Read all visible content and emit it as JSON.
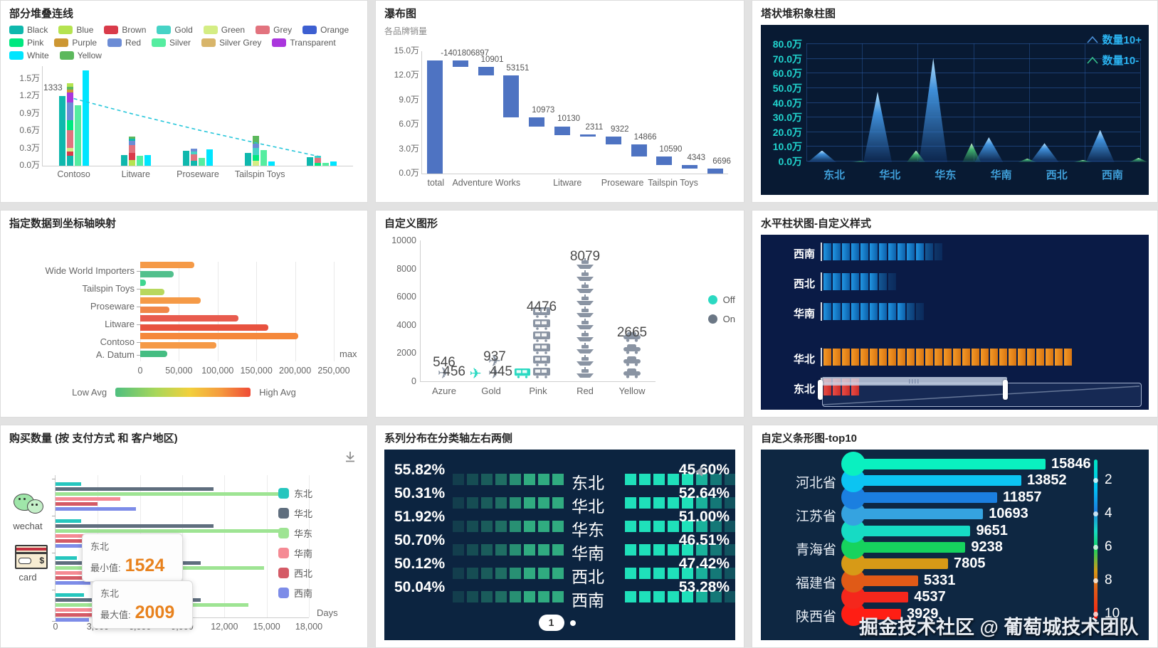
{
  "chart_data": [
    {
      "id": "p1",
      "type": "bar",
      "title": "部分堆叠连线",
      "legend": [
        {
          "label": "Black",
          "color": "#0fb8ad"
        },
        {
          "label": "Blue",
          "color": "#b5e350"
        },
        {
          "label": "Brown",
          "color": "#d93b4a"
        },
        {
          "label": "Gold",
          "color": "#46d3c6"
        },
        {
          "label": "Green",
          "color": "#d4ed84"
        },
        {
          "label": "Grey",
          "color": "#e2737e"
        },
        {
          "label": "Orange",
          "color": "#3d5fd1"
        },
        {
          "label": "Pink",
          "color": "#00e87f"
        },
        {
          "label": "Purple",
          "color": "#cd9733"
        },
        {
          "label": "Red",
          "color": "#6c8cd5"
        },
        {
          "label": "Silver",
          "color": "#55eda0"
        },
        {
          "label": "Silver Grey",
          "color": "#d8b56a"
        },
        {
          "label": "Transparent",
          "color": "#aa36dd"
        },
        {
          "label": "White",
          "color": "#00e5ff"
        },
        {
          "label": "Yellow",
          "color": "#5cb85c"
        }
      ],
      "y_ticks": [
        "0.0万",
        "0.3万",
        "0.6万",
        "0.9万",
        "1.2万",
        "1.5万"
      ],
      "categories": [
        "Contoso",
        "Litware",
        "Proseware",
        "Tailspin Toys",
        ""
      ],
      "point_label": "1333",
      "colors": {
        "solid": "#0fb8ad",
        "green": "#55eda0",
        "cyan": "#00e5ff",
        "line": "#26c6da"
      },
      "groups": [
        {
          "solid": 1.2,
          "green": 1.05,
          "cyan": 1.65,
          "stack": [
            [
              "#0fb8ad",
              0.17
            ],
            [
              "#d93b4a",
              0.08
            ],
            [
              "#d4ed84",
              0.06
            ],
            [
              "#e2737e",
              0.3
            ],
            [
              "#00e87f",
              0.18
            ],
            [
              "#6c8cd5",
              0.3
            ],
            [
              "#aa36dd",
              0.18
            ],
            [
              "#cd9733",
              0.05
            ],
            [
              "#5cb85c",
              0.04
            ],
            [
              "#b5e350",
              0.07
            ]
          ]
        },
        {
          "solid": 0.18,
          "green": 0.17,
          "cyan": 0.18,
          "stack": [
            [
              "#b5e350",
              0.1
            ],
            [
              "#d93b4a",
              0.12
            ],
            [
              "#e2737e",
              0.14
            ],
            [
              "#6c8cd5",
              0.07
            ],
            [
              "#0fb8ad",
              0.04
            ],
            [
              "#5cb85c",
              0.03
            ]
          ]
        },
        {
          "solid": 0.26,
          "green": 0.13,
          "cyan": 0.28,
          "stack": [
            [
              "#0fb8ad",
              0.09
            ],
            [
              "#e2737e",
              0.11
            ],
            [
              "#46d3c6",
              0.04
            ],
            [
              "#6c8cd5",
              0.05
            ]
          ]
        },
        {
          "solid": 0.22,
          "green": 0.27,
          "cyan": 0.08,
          "stack": [
            [
              "#d4ed84",
              0.09
            ],
            [
              "#00e87f",
              0.09
            ],
            [
              "#46d3c6",
              0.13
            ],
            [
              "#6c8cd5",
              0.07
            ],
            [
              "#5cb85c",
              0.14
            ]
          ]
        },
        {
          "solid": 0.15,
          "green": 0.05,
          "cyan": 0.08,
          "stack": [
            [
              "#00e87f",
              0.05
            ],
            [
              "#e2737e",
              0.08
            ],
            [
              "#46d3c6",
              0.04
            ]
          ]
        }
      ],
      "line_wan": [
        1.16,
        0.88,
        0.62,
        0.38,
        0.15
      ]
    },
    {
      "id": "p2",
      "type": "waterfall",
      "title": "瀑布图",
      "subtitle": "各品牌销量",
      "y_ticks": [
        "0.0万",
        "3.0万",
        "6.0万",
        "9.0万",
        "12.0万",
        "15.0万"
      ],
      "bar_color": "#4e73c2",
      "bars": [
        {
          "s": 0,
          "e": 13.9,
          "label": "-1401806897",
          "lx": 0.14
        },
        {
          "s": 13.1,
          "e": 13.9
        },
        {
          "s": 12.0,
          "e": 13.1,
          "label": "10901"
        },
        {
          "s": 6.9,
          "e": 12.0,
          "label": "53151"
        },
        {
          "s": 5.8,
          "e": 6.9,
          "label": "10973"
        },
        {
          "s": 4.75,
          "e": 5.8,
          "label": "10130"
        },
        {
          "s": 4.55,
          "e": 4.78,
          "label": "2311"
        },
        {
          "s": 3.6,
          "e": 4.55,
          "label": "9322"
        },
        {
          "s": 2.1,
          "e": 3.6,
          "label": "14866"
        },
        {
          "s": 1.05,
          "e": 2.1,
          "label": "10590"
        },
        {
          "s": 0.6,
          "e": 1.05,
          "label": "4343"
        },
        {
          "s": 0,
          "e": 0.65,
          "label": "6696"
        }
      ],
      "x_labels": [
        {
          "text": "total",
          "pos": 0.045
        },
        {
          "text": "Adventure Works",
          "pos": 0.21
        },
        {
          "text": "Litware",
          "pos": 0.475
        },
        {
          "text": "Proseware",
          "pos": 0.655
        },
        {
          "text": "Tailspin Toys",
          "pos": 0.82
        }
      ],
      "ymax": 15
    },
    {
      "id": "p3",
      "type": "area",
      "title": "塔状堆积象柱图",
      "bg": "#081a33",
      "y_ticks": [
        "0.0万",
        "10.0万",
        "20.0万",
        "30.0万",
        "40.0万",
        "50.0万",
        "60.0万",
        "70.0万",
        "80.0万"
      ],
      "categories": [
        "东北",
        "华北",
        "华东",
        "华南",
        "西北",
        "西南"
      ],
      "legend": [
        {
          "label": "数量10+",
          "color": "#4a90d9"
        },
        {
          "label": "数量10-",
          "color": "#35c08c"
        }
      ],
      "series": [
        {
          "name": "数量10+",
          "values": [
            8,
            48,
            71,
            17,
            13,
            22
          ]
        },
        {
          "name": "数量10-",
          "values": [
            0.8,
            8,
            13,
            2.5,
            1.5,
            3
          ]
        }
      ],
      "ymax": 80
    },
    {
      "id": "p4",
      "type": "bar",
      "title": "指定数据到坐标轴映射",
      "bars": [
        {
          "v": 70000,
          "c": "#f59a47"
        },
        {
          "v": 43000,
          "c": "#52c08d"
        },
        {
          "v": 7000,
          "c": "#3fd68f"
        },
        {
          "v": 31000,
          "c": "#b8d85e"
        },
        {
          "v": 78000,
          "c": "#f59a47"
        },
        {
          "v": 38000,
          "c": "#f08648"
        },
        {
          "v": 127000,
          "c": "#e85b4e"
        },
        {
          "v": 165000,
          "c": "#e8523f"
        },
        {
          "v": 204000,
          "c": "#f5883b"
        },
        {
          "v": 98000,
          "c": "#f59a47"
        },
        {
          "v": 35000,
          "c": "#45bd82"
        }
      ],
      "labels": [
        {
          "text": "Wide World Importers",
          "row": 1
        },
        {
          "text": "Tailspin Toys",
          "row": 3
        },
        {
          "text": "Proseware",
          "row": 5
        },
        {
          "text": "Litware",
          "row": 7
        },
        {
          "text": "Contoso",
          "row": 9
        },
        {
          "text": "A. Datum",
          "row": 10.5
        }
      ],
      "x_ticks": [
        "0",
        "50,000",
        "100,000",
        "150,000",
        "200,000",
        "250,000"
      ],
      "max_label": "max",
      "xmax": 250000,
      "gradient_legend": {
        "low": "Low Avg",
        "high": "High Avg"
      }
    },
    {
      "id": "p5",
      "type": "bar",
      "title": "自定义图形",
      "y_ticks": [
        "0",
        "2000",
        "4000",
        "6000",
        "8000",
        "10000"
      ],
      "ymax": 10000,
      "legend": [
        {
          "label": "Off",
          "color": "#2bd9c2"
        },
        {
          "label": "On",
          "color": "#6b7785"
        }
      ],
      "icon_colors": {
        "off": "#2bd9c2",
        "on": "#8a94a3"
      },
      "categories": [
        {
          "name": "Azure",
          "on": {
            "value": 546,
            "icon": "plane"
          }
        },
        {
          "name": "Gold",
          "off": {
            "value": 456,
            "icon": "plane"
          },
          "on": {
            "value": 937,
            "icon": "plane"
          }
        },
        {
          "name": "Pink",
          "off": {
            "value": 445,
            "icon": "train"
          },
          "on": {
            "value": 4476,
            "icon": "train"
          }
        },
        {
          "name": "Red",
          "on": {
            "value": 8079,
            "icon": "ship"
          }
        },
        {
          "name": "Yellow",
          "on": {
            "value": 2665,
            "icon": "car"
          }
        }
      ]
    },
    {
      "id": "p6",
      "type": "bar",
      "title": "水平柱状图-自定义样式",
      "bg": "#0a1b46",
      "rows": [
        {
          "label": "西南",
          "segments": 13,
          "color": "blue"
        },
        {
          "label": "西北",
          "segments": 8,
          "color": "blue"
        },
        {
          "label": "华南",
          "segments": 11,
          "color": "blue"
        },
        {
          "label": "华北",
          "segments": 27,
          "color": "orange"
        },
        {
          "label": "东北",
          "segments": 4,
          "color": "red"
        }
      ],
      "colors": {
        "blue": "#1186d1",
        "orange": "#f08c1e",
        "red": "#f23a2e"
      }
    },
    {
      "id": "p7",
      "type": "bar",
      "title": "购买数量 (按 支付方式 和 客户地区)",
      "legend": [
        {
          "label": "东北",
          "color": "#26c6be"
        },
        {
          "label": "华北",
          "color": "#5f6e7e"
        },
        {
          "label": "华东",
          "color": "#9ee493"
        },
        {
          "label": "华南",
          "color": "#f58a94"
        },
        {
          "label": "西北",
          "color": "#d45a66"
        },
        {
          "label": "西南",
          "color": "#7d8ce8"
        }
      ],
      "y_groups": [
        {
          "label": "wechat"
        },
        {
          "label": "card"
        }
      ],
      "clusters": [
        [
          1800,
          11200,
          16000,
          4600,
          3000,
          5700
        ],
        [
          1800,
          11200,
          16100,
          4400,
          3500,
          2600
        ],
        [
          1500,
          10300,
          14800,
          4300,
          3400,
          2500
        ],
        [
          2000,
          10300,
          13700,
          4200,
          3300,
          2400
        ]
      ],
      "x_ticks": [
        "0",
        "3,000",
        "6,000",
        "9,000",
        "12,000",
        "15,000",
        "18,000"
      ],
      "x_axis_label": "Days",
      "xmax": 18000,
      "tooltips": [
        {
          "region": "东北",
          "metric": "最小值:",
          "value": "1524"
        },
        {
          "region": "东北",
          "metric": "最大值:",
          "value": "2009"
        }
      ],
      "value_color": "#e8821e"
    },
    {
      "id": "p8",
      "type": "bar",
      "title": "系列分布在分类轴左右两侧",
      "bg": "#0c2440",
      "rows": [
        {
          "cat": "东北",
          "left": "55.82%",
          "right": "45.60%"
        },
        {
          "cat": "华北",
          "left": "50.31%",
          "right": "52.64%"
        },
        {
          "cat": "华东",
          "left": "51.92%",
          "right": "51.00%"
        },
        {
          "cat": "华南",
          "left": "50.70%",
          "right": "46.51%"
        },
        {
          "cat": "西北",
          "left": "50.12%",
          "right": "47.42%"
        },
        {
          "cat": "西南",
          "left": "50.04%",
          "right": "53.28%"
        }
      ],
      "page": "1",
      "colors": {
        "left": "#30ab80",
        "right": "#1fe0ba"
      }
    },
    {
      "id": "p9",
      "type": "bar",
      "title": "自定义条形图-top10",
      "bg": "#0e2742",
      "bars": [
        {
          "v": 15846,
          "c": "#0af0c0"
        },
        {
          "v": 13852,
          "c": "#0cc4f2"
        },
        {
          "v": 11857,
          "c": "#1b7fe0"
        },
        {
          "v": 10693,
          "c": "#35a3e0"
        },
        {
          "v": 9651,
          "c": "#16dbc4"
        },
        {
          "v": 9238,
          "c": "#16d35e"
        },
        {
          "v": 7805,
          "c": "#d79a17"
        },
        {
          "v": 5331,
          "c": "#e05a17"
        },
        {
          "v": 4537,
          "c": "#f5271c"
        },
        {
          "v": 3929,
          "c": "#ff1e14"
        }
      ],
      "left_labels": [
        {
          "text": "河北省",
          "row": 1
        },
        {
          "text": "江苏省",
          "row": 3
        },
        {
          "text": "青海省",
          "row": 5
        },
        {
          "text": "福建省",
          "row": 7
        },
        {
          "text": "陕西省",
          "row": 9
        }
      ],
      "axis_ticks": [
        "2",
        "4",
        "6",
        "8",
        "10"
      ],
      "watermark": "掘金技术社区 @ 葡萄城技术团队",
      "max": 15846
    }
  ]
}
